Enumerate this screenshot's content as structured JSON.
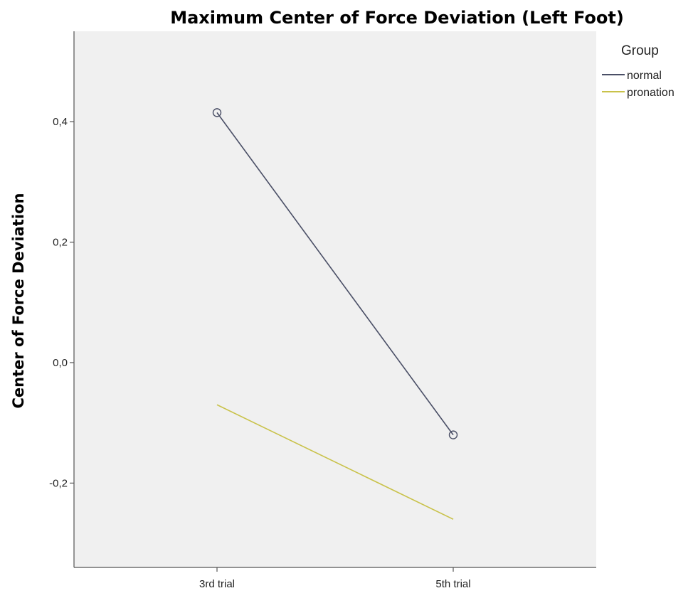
{
  "chart_data": {
    "type": "line",
    "title": "Maximum Center of Force Deviation (Left Foot)",
    "ylabel": "Center of Force Deviation",
    "xlabel": "",
    "categories": [
      "3rd trial",
      "5th trial"
    ],
    "ylim": [
      -0.34,
      0.55
    ],
    "yticks": [
      -0.2,
      0.0,
      0.2,
      0.4
    ],
    "ytick_labels": [
      "-0,2",
      "0,0",
      "0,2",
      "0,4"
    ],
    "grid": false,
    "legend": {
      "title": "Group",
      "placement": "top-right"
    },
    "series": [
      {
        "name": "normal",
        "values": [
          0.415,
          -0.12
        ],
        "color": "#4a4f66",
        "markers": true
      },
      {
        "name": "pronation",
        "values": [
          -0.07,
          -0.26
        ],
        "color": "#c9c24a",
        "markers": false
      }
    ]
  },
  "colors": {
    "plot_background": "#f0f0f0",
    "axis": "#555555"
  }
}
